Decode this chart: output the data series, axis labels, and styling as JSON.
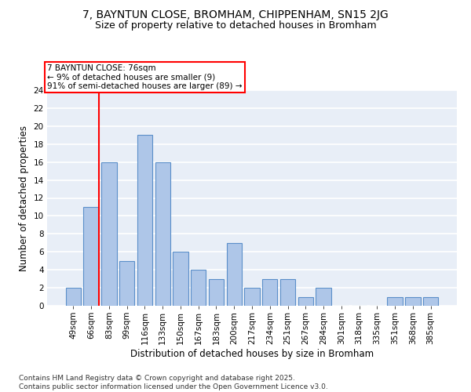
{
  "title": "7, BAYNTUN CLOSE, BROMHAM, CHIPPENHAM, SN15 2JG",
  "subtitle": "Size of property relative to detached houses in Bromham",
  "xlabel": "Distribution of detached houses by size in Bromham",
  "ylabel": "Number of detached properties",
  "categories": [
    "49sqm",
    "66sqm",
    "83sqm",
    "99sqm",
    "116sqm",
    "133sqm",
    "150sqm",
    "167sqm",
    "183sqm",
    "200sqm",
    "217sqm",
    "234sqm",
    "251sqm",
    "267sqm",
    "284sqm",
    "301sqm",
    "318sqm",
    "335sqm",
    "351sqm",
    "368sqm",
    "385sqm"
  ],
  "values": [
    2,
    11,
    16,
    5,
    19,
    16,
    6,
    4,
    3,
    7,
    2,
    3,
    3,
    1,
    2,
    0,
    0,
    0,
    1,
    1,
    1
  ],
  "bar_color": "#aec6e8",
  "bar_edge_color": "#5b8fc9",
  "background_color": "#e8eef7",
  "grid_color": "#ffffff",
  "annotation_line1": "7 BAYNTUN CLOSE: 76sqm",
  "annotation_line2": "← 9% of detached houses are smaller (9)",
  "annotation_line3": "91% of semi-detached houses are larger (89) →",
  "red_line_bar_index": 1,
  "ylim": [
    0,
    24
  ],
  "yticks": [
    0,
    2,
    4,
    6,
    8,
    10,
    12,
    14,
    16,
    18,
    20,
    22,
    24
  ],
  "footer": "Contains HM Land Registry data © Crown copyright and database right 2025.\nContains public sector information licensed under the Open Government Licence v3.0.",
  "title_fontsize": 10,
  "subtitle_fontsize": 9,
  "axis_label_fontsize": 8.5,
  "tick_fontsize": 7.5,
  "annotation_fontsize": 7.5,
  "footer_fontsize": 6.5
}
